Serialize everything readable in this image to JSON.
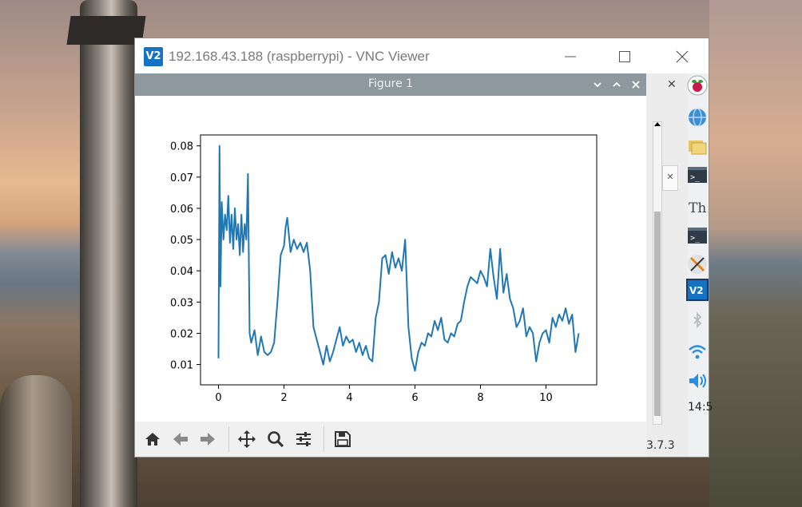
{
  "vnc": {
    "logo": "V2",
    "title": "192.168.43.188 (raspberrypi) - VNC Viewer",
    "minimize": "—",
    "maximize": "☐",
    "close": "✕"
  },
  "figure": {
    "title": "Figure 1",
    "ctrl_min": "⌄",
    "ctrl_max": "⌃",
    "ctrl_close": "✕"
  },
  "toolbar": {
    "icons": [
      "home-icon",
      "back-arrow-icon",
      "forward-arrow-icon",
      "pan-icon",
      "zoom-icon",
      "configure-subplots-icon",
      "save-icon"
    ]
  },
  "right_strip": {
    "close": "✕",
    "tab_close": "✕",
    "version": "3.7.3",
    "clock": "14:5"
  },
  "pi_panel": {
    "icons": [
      "raspberry-menu-icon",
      "web-browser-icon",
      "file-manager-icon",
      "terminal-icon",
      "thonny-icon",
      "terminal-icon",
      "geany-icon",
      "vnc-icon",
      "bluetooth-icon",
      "wifi-icon",
      "volume-icon"
    ]
  },
  "colors": {
    "line": "#1f77b4",
    "figure_titlebar": "#8d989f",
    "vnc_brand": "#1673c3"
  },
  "chart_data": {
    "type": "line",
    "title": "",
    "xlabel": "",
    "ylabel": "",
    "xlim": [
      -0.55,
      11.55
    ],
    "ylim": [
      0.0035,
      0.0835
    ],
    "xticks": [
      0,
      2,
      4,
      6,
      8,
      10
    ],
    "yticks": [
      0.01,
      0.02,
      0.03,
      0.04,
      0.05,
      0.06,
      0.07,
      0.08
    ],
    "ytick_labels": [
      "0.01",
      "0.02",
      "0.03",
      "0.04",
      "0.05",
      "0.06",
      "0.07",
      "0.08"
    ],
    "xtick_labels": [
      "0",
      "2",
      "4",
      "6",
      "8",
      "10"
    ],
    "grid": false,
    "series": [
      {
        "x": [
          0.0,
          0.03,
          0.06,
          0.1,
          0.15,
          0.2,
          0.25,
          0.3,
          0.35,
          0.4,
          0.45,
          0.5,
          0.55,
          0.6,
          0.65,
          0.7,
          0.75,
          0.8,
          0.85,
          0.9,
          0.95,
          1.0,
          1.1,
          1.2,
          1.3,
          1.4,
          1.5,
          1.6,
          1.7,
          1.8,
          1.9,
          2.0,
          2.05,
          2.1,
          2.2,
          2.3,
          2.4,
          2.5,
          2.6,
          2.7,
          2.8,
          2.9,
          3.0,
          3.1,
          3.2,
          3.3,
          3.4,
          3.5,
          3.6,
          3.7,
          3.8,
          3.9,
          4.0,
          4.1,
          4.2,
          4.3,
          4.4,
          4.5,
          4.6,
          4.7,
          4.8,
          4.9,
          5.0,
          5.1,
          5.2,
          5.3,
          5.4,
          5.5,
          5.6,
          5.7,
          5.8,
          5.9,
          6.0,
          6.1,
          6.2,
          6.3,
          6.4,
          6.5,
          6.6,
          6.7,
          6.8,
          6.9,
          7.0,
          7.1,
          7.2,
          7.3,
          7.4,
          7.5,
          7.6,
          7.7,
          7.8,
          7.9,
          8.0,
          8.1,
          8.2,
          8.3,
          8.4,
          8.5,
          8.6,
          8.7,
          8.8,
          8.9,
          9.0,
          9.1,
          9.2,
          9.3,
          9.4,
          9.5,
          9.6,
          9.7,
          9.8,
          9.9,
          10.0,
          10.1,
          10.2,
          10.3,
          10.4,
          10.5,
          10.6,
          10.7,
          10.8,
          10.9,
          11.0
        ],
        "values": [
          0.012,
          0.08,
          0.035,
          0.062,
          0.05,
          0.058,
          0.053,
          0.064,
          0.049,
          0.058,
          0.047,
          0.06,
          0.05,
          0.055,
          0.045,
          0.058,
          0.046,
          0.055,
          0.05,
          0.071,
          0.02,
          0.017,
          0.021,
          0.013,
          0.019,
          0.014,
          0.013,
          0.014,
          0.017,
          0.03,
          0.045,
          0.048,
          0.054,
          0.057,
          0.046,
          0.05,
          0.047,
          0.049,
          0.046,
          0.049,
          0.04,
          0.022,
          0.018,
          0.014,
          0.01,
          0.016,
          0.011,
          0.014,
          0.018,
          0.022,
          0.016,
          0.019,
          0.017,
          0.018,
          0.014,
          0.017,
          0.013,
          0.016,
          0.012,
          0.011,
          0.025,
          0.03,
          0.044,
          0.045,
          0.039,
          0.046,
          0.041,
          0.044,
          0.04,
          0.05,
          0.022,
          0.012,
          0.008,
          0.014,
          0.017,
          0.016,
          0.02,
          0.019,
          0.024,
          0.021,
          0.025,
          0.018,
          0.017,
          0.02,
          0.019,
          0.023,
          0.024,
          0.03,
          0.035,
          0.038,
          0.037,
          0.036,
          0.04,
          0.038,
          0.035,
          0.047,
          0.038,
          0.031,
          0.047,
          0.033,
          0.039,
          0.031,
          0.028,
          0.022,
          0.024,
          0.028,
          0.019,
          0.022,
          0.02,
          0.011,
          0.017,
          0.02,
          0.021,
          0.017,
          0.025,
          0.022,
          0.026,
          0.024,
          0.028,
          0.023,
          0.026,
          0.014,
          0.02
        ]
      }
    ]
  }
}
